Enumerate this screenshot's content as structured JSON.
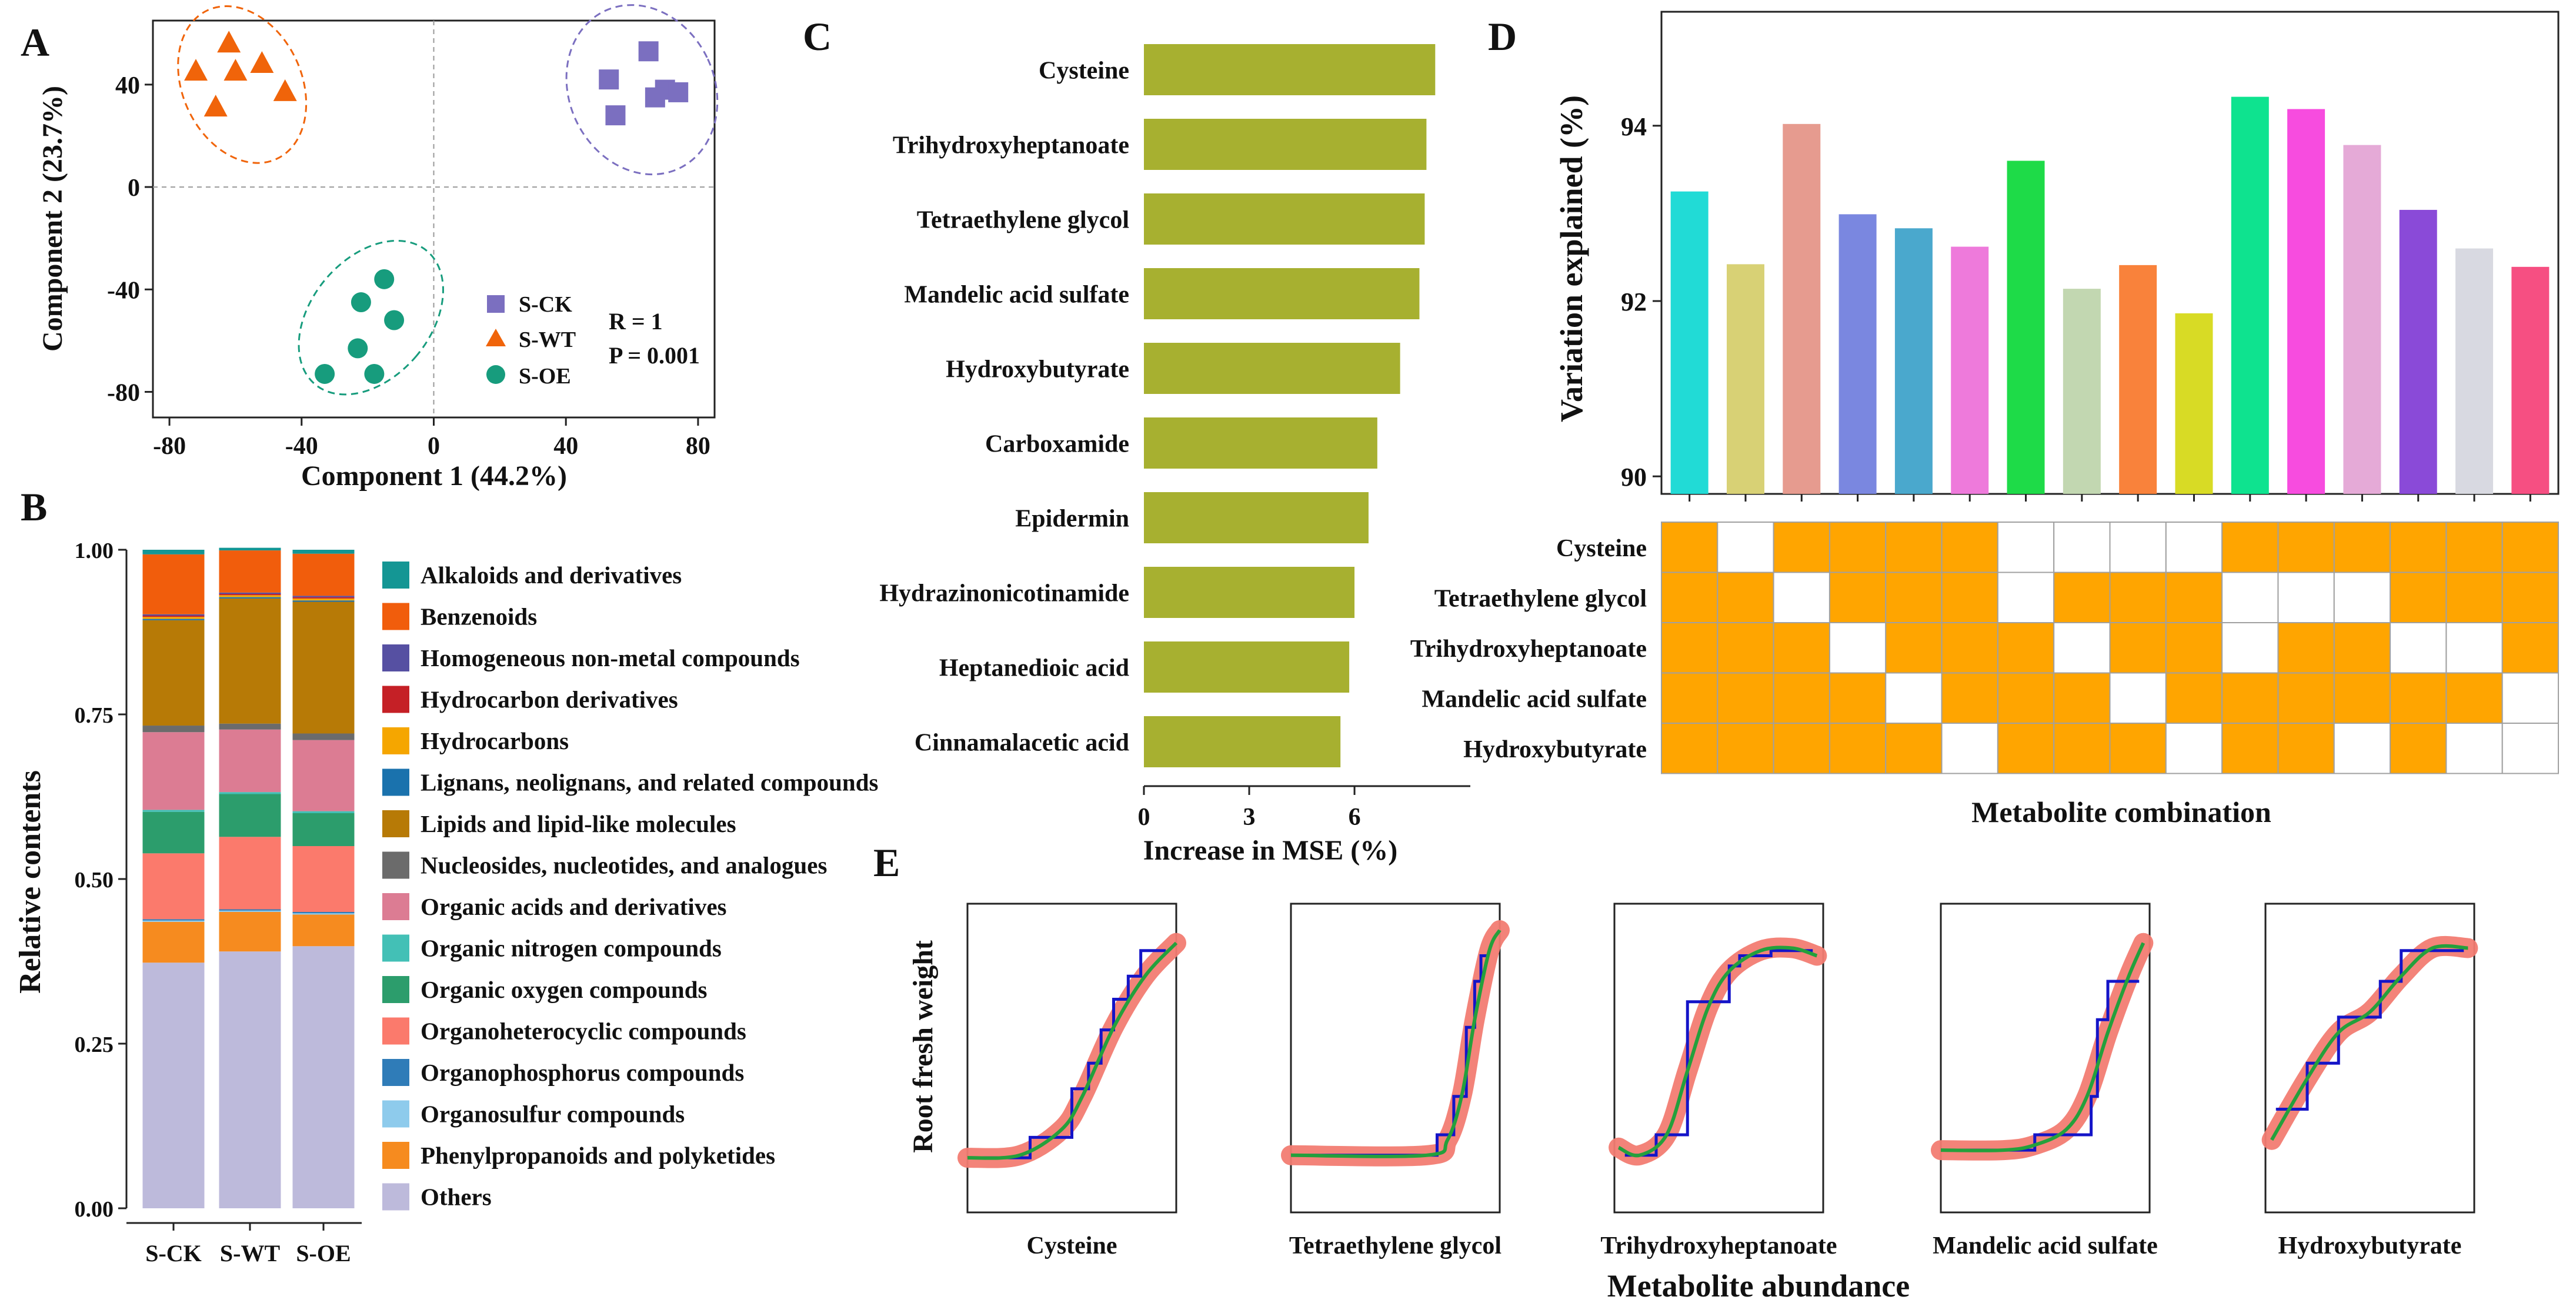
{
  "figure": {
    "panel_letters": [
      "A",
      "B",
      "C",
      "D",
      "E"
    ]
  },
  "chart_data": [
    {
      "panel": "A",
      "type": "scatter",
      "xlabel": "Component 1 (44.2%)",
      "ylabel": "Component 2 (23.7%)",
      "xlim": [
        -85,
        85
      ],
      "ylim": [
        -90,
        65
      ],
      "xticks": [
        -80,
        -40,
        0,
        40,
        80
      ],
      "yticks": [
        -80,
        -40,
        0,
        40
      ],
      "stats": [
        "R = 1",
        "P = 0.001"
      ],
      "legend_position": "bottom-right",
      "series": [
        {
          "name": "S-CK",
          "marker": "square",
          "color": "#7b6fc0",
          "x": [
            53,
            65,
            70,
            55,
            67,
            74
          ],
          "y": [
            42,
            53,
            38,
            28,
            35,
            37
          ]
        },
        {
          "name": "S-WT",
          "marker": "triangle",
          "color": "#f0640a",
          "x": [
            -72,
            -62,
            -52,
            -60,
            -66,
            -45
          ],
          "y": [
            45,
            56,
            48,
            45,
            31,
            37
          ]
        },
        {
          "name": "S-OE",
          "marker": "circle",
          "color": "#179c7d",
          "x": [
            -33,
            -15,
            -22,
            -12,
            -23,
            -18
          ],
          "y": [
            -73,
            -36,
            -45,
            -52,
            -63,
            -73
          ]
        }
      ],
      "ellipses": [
        {
          "series": "S-CK",
          "cx": 63,
          "cy": 38,
          "rx": 22,
          "ry": 34,
          "angle": -25
        },
        {
          "series": "S-WT",
          "cx": -58,
          "cy": 40,
          "rx": 18,
          "ry": 32,
          "angle": -25
        },
        {
          "series": "S-OE",
          "cx": -19,
          "cy": -51,
          "rx": 18,
          "ry": 34,
          "angle": 40
        }
      ]
    },
    {
      "panel": "B",
      "type": "bar",
      "stacked": true,
      "ylabel": "Relative contents",
      "categories": [
        "S-CK",
        "S-WT",
        "S-OE"
      ],
      "ylim": [
        0,
        1
      ],
      "yticks": [
        "0.00",
        "0.25",
        "0.50",
        "0.75",
        "1.00"
      ],
      "series": [
        {
          "name": "Others",
          "color": "#bdbadb",
          "values": [
            0.373,
            0.39,
            0.398
          ]
        },
        {
          "name": "Phenylpropanoids and polyketides",
          "color": "#f68b1f",
          "values": [
            0.062,
            0.06,
            0.048
          ]
        },
        {
          "name": "Organosulfur compounds",
          "color": "#8ecbec",
          "values": [
            0.002,
            0.002,
            0.002
          ]
        },
        {
          "name": "Organophosphorus compounds",
          "color": "#2f7cb8",
          "values": [
            0.002,
            0.002,
            0.002
          ]
        },
        {
          "name": "Organoheterocyclic compounds",
          "color": "#fb7a6c",
          "values": [
            0.1,
            0.11,
            0.1
          ]
        },
        {
          "name": "Organic oxygen compounds",
          "color": "#2c9d6c",
          "values": [
            0.063,
            0.065,
            0.05
          ]
        },
        {
          "name": "Organic nitrogen compounds",
          "color": "#43c0b6",
          "values": [
            0.003,
            0.003,
            0.003
          ]
        },
        {
          "name": "Organic acids and derivatives",
          "color": "#dc7c93",
          "values": [
            0.118,
            0.095,
            0.108
          ]
        },
        {
          "name": "Nucleosides, nucleotides, and analogues",
          "color": "#6b6b6b",
          "values": [
            0.01,
            0.009,
            0.01
          ]
        },
        {
          "name": "Lipids and lipid-like molecules",
          "color": "#b77a06",
          "values": [
            0.16,
            0.19,
            0.2
          ]
        },
        {
          "name": "Lignans, neolignans, and related compounds",
          "color": "#1a72ad",
          "values": [
            0.002,
            0.002,
            0.002
          ]
        },
        {
          "name": "Hydrocarbons",
          "color": "#f5a600",
          "values": [
            0.003,
            0.003,
            0.003
          ]
        },
        {
          "name": "Hydrocarbon derivatives",
          "color": "#c52026",
          "values": [
            0.002,
            0.002,
            0.002
          ]
        },
        {
          "name": "Homogeneous non-metal compounds",
          "color": "#5650a2",
          "values": [
            0.002,
            0.002,
            0.002
          ]
        },
        {
          "name": "Benzenoids",
          "color": "#f15d0c",
          "values": [
            0.091,
            0.064,
            0.064
          ]
        },
        {
          "name": "Alkaloids and derivatives",
          "color": "#149694",
          "values": [
            0.007,
            0.004,
            0.006
          ]
        }
      ],
      "legend_order": [
        "Alkaloids and derivatives",
        "Benzenoids",
        "Homogeneous non-metal compounds",
        "Hydrocarbon derivatives",
        "Hydrocarbons",
        "Lignans, neolignans, and related compounds",
        "Lipids and lipid-like molecules",
        "Nucleosides, nucleotides, and analogues",
        "Organic acids and derivatives",
        "Organic nitrogen compounds",
        "Organic oxygen compounds",
        "Organoheterocyclic compounds",
        "Organophosphorus compounds",
        "Organosulfur compounds",
        "Phenylpropanoids and polyketides",
        "Others"
      ]
    },
    {
      "panel": "C",
      "type": "bar",
      "orientation": "horizontal",
      "xlabel": "Increase in MSE (%)",
      "xlim": [
        0,
        9.3
      ],
      "xticks": [
        0,
        3,
        6
      ],
      "color": "#a7b030",
      "categories": [
        "Cysteine",
        "Trihydroxyheptanoate",
        "Tetraethylene glycol",
        "Mandelic acid sulfate",
        "Hydroxybutyrate",
        "Carboxamide",
        "Epidermin",
        "Hydrazinonicotinamide",
        "Heptanedioic acid",
        "Cinnamalacetic acid"
      ],
      "values": [
        8.3,
        8.05,
        8.0,
        7.85,
        7.3,
        6.65,
        6.4,
        6.0,
        5.85,
        5.6
      ]
    },
    {
      "panel": "D",
      "type": "bar",
      "ylabel": "Variation explained (%)",
      "xlabel": "Metabolite combination",
      "ylim": [
        89.8,
        95.3
      ],
      "yticks": [
        90,
        92,
        94
      ],
      "values": [
        93.25,
        92.42,
        94.02,
        92.99,
        92.83,
        92.62,
        93.6,
        92.14,
        92.41,
        91.86,
        94.33,
        94.19,
        93.78,
        93.04,
        92.6,
        92.39
      ],
      "colors": [
        "#21dbd6",
        "#d8d175",
        "#e69b8f",
        "#7a87e0",
        "#4aa8cd",
        "#ee7adb",
        "#1edb48",
        "#c2d7b1",
        "#f9823b",
        "#d8db25",
        "#0ee38f",
        "#f74cdf",
        "#e5aad7",
        "#8a4ad8",
        "#d8d9e1",
        "#f64f82"
      ],
      "matrix_rows": [
        "Cysteine",
        "Tetraethylene glycol",
        "Trihydroxyheptanoate",
        "Mandelic acid sulfate",
        "Hydroxybutyrate"
      ],
      "matrix_fill_color": "#ffa500",
      "matrix": [
        [
          1,
          0,
          1,
          1,
          1,
          1,
          0,
          0,
          0,
          0,
          1,
          1,
          1,
          1,
          1,
          1
        ],
        [
          1,
          1,
          0,
          1,
          1,
          1,
          0,
          1,
          1,
          1,
          0,
          0,
          0,
          1,
          1,
          1
        ],
        [
          1,
          1,
          1,
          0,
          1,
          1,
          1,
          0,
          1,
          1,
          0,
          1,
          1,
          0,
          0,
          1
        ],
        [
          1,
          1,
          1,
          1,
          0,
          1,
          1,
          1,
          0,
          1,
          1,
          1,
          1,
          1,
          1,
          0
        ],
        [
          1,
          1,
          1,
          1,
          1,
          0,
          1,
          1,
          1,
          0,
          1,
          1,
          0,
          1,
          0,
          0
        ]
      ]
    },
    {
      "panel": "E",
      "type": "line",
      "ylabel": "Root fresh weight",
      "xlabel": "Metabolite abundance",
      "line_colors": {
        "step": "#1414c8",
        "smooth": "#24a03c",
        "band": "#f27c72"
      },
      "subplots": [
        {
          "title": "Cysteine",
          "step": [
            [
              0.05,
              0.11
            ],
            [
              0.3,
              0.11
            ],
            [
              0.3,
              0.19
            ],
            [
              0.5,
              0.19
            ],
            [
              0.5,
              0.38
            ],
            [
              0.58,
              0.38
            ],
            [
              0.58,
              0.48
            ],
            [
              0.64,
              0.48
            ],
            [
              0.64,
              0.61
            ],
            [
              0.7,
              0.61
            ],
            [
              0.7,
              0.73
            ],
            [
              0.77,
              0.73
            ],
            [
              0.77,
              0.82
            ],
            [
              0.83,
              0.82
            ],
            [
              0.83,
              0.92
            ],
            [
              0.95,
              0.92
            ]
          ],
          "smooth": [
            [
              0,
              0.11
            ],
            [
              0.25,
              0.12
            ],
            [
              0.45,
              0.22
            ],
            [
              0.55,
              0.35
            ],
            [
              0.7,
              0.62
            ],
            [
              0.85,
              0.82
            ],
            [
              1,
              0.95
            ]
          ]
        },
        {
          "title": "Tetraethylene glycol",
          "step": [
            [
              0.05,
              0.12
            ],
            [
              0.7,
              0.12
            ],
            [
              0.7,
              0.2
            ],
            [
              0.78,
              0.2
            ],
            [
              0.78,
              0.35
            ],
            [
              0.84,
              0.35
            ],
            [
              0.84,
              0.62
            ],
            [
              0.88,
              0.62
            ],
            [
              0.88,
              0.8
            ],
            [
              0.91,
              0.8
            ],
            [
              0.91,
              0.9
            ],
            [
              0.95,
              0.9
            ]
          ],
          "smooth": [
            [
              0,
              0.12
            ],
            [
              0.65,
              0.12
            ],
            [
              0.75,
              0.18
            ],
            [
              0.82,
              0.36
            ],
            [
              0.88,
              0.65
            ],
            [
              0.95,
              0.92
            ],
            [
              1,
              1.0
            ]
          ]
        },
        {
          "title": "Trihydroxyheptanoate",
          "step": [
            [
              0.05,
              0.12
            ],
            [
              0.2,
              0.12
            ],
            [
              0.2,
              0.2
            ],
            [
              0.35,
              0.2
            ],
            [
              0.35,
              0.72
            ],
            [
              0.55,
              0.72
            ],
            [
              0.55,
              0.86
            ],
            [
              0.6,
              0.86
            ],
            [
              0.6,
              0.9
            ],
            [
              0.75,
              0.9
            ],
            [
              0.75,
              0.92
            ],
            [
              0.95,
              0.92
            ]
          ],
          "smooth": [
            [
              0.02,
              0.15
            ],
            [
              0.12,
              0.12
            ],
            [
              0.25,
              0.2
            ],
            [
              0.35,
              0.45
            ],
            [
              0.45,
              0.7
            ],
            [
              0.55,
              0.84
            ],
            [
              0.7,
              0.92
            ],
            [
              0.85,
              0.93
            ],
            [
              0.97,
              0.9
            ]
          ]
        },
        {
          "title": "Mandelic acid sulfate",
          "step": [
            [
              0.05,
              0.14
            ],
            [
              0.45,
              0.14
            ],
            [
              0.45,
              0.2
            ],
            [
              0.72,
              0.2
            ],
            [
              0.72,
              0.35
            ],
            [
              0.75,
              0.35
            ],
            [
              0.75,
              0.65
            ],
            [
              0.8,
              0.65
            ],
            [
              0.8,
              0.8
            ],
            [
              0.95,
              0.8
            ]
          ],
          "smooth": [
            [
              0,
              0.14
            ],
            [
              0.3,
              0.14
            ],
            [
              0.45,
              0.16
            ],
            [
              0.6,
              0.22
            ],
            [
              0.7,
              0.35
            ],
            [
              0.8,
              0.6
            ],
            [
              0.9,
              0.82
            ],
            [
              0.97,
              0.95
            ]
          ]
        },
        {
          "title": "Hydroxybutyrate",
          "step": [
            [
              0.05,
              0.3
            ],
            [
              0.2,
              0.3
            ],
            [
              0.2,
              0.48
            ],
            [
              0.35,
              0.48
            ],
            [
              0.35,
              0.66
            ],
            [
              0.55,
              0.66
            ],
            [
              0.55,
              0.8
            ],
            [
              0.65,
              0.8
            ],
            [
              0.65,
              0.92
            ],
            [
              0.95,
              0.92
            ]
          ],
          "smooth": [
            [
              0.03,
              0.18
            ],
            [
              0.2,
              0.42
            ],
            [
              0.35,
              0.6
            ],
            [
              0.5,
              0.68
            ],
            [
              0.65,
              0.82
            ],
            [
              0.8,
              0.93
            ],
            [
              0.97,
              0.93
            ]
          ]
        }
      ]
    }
  ]
}
